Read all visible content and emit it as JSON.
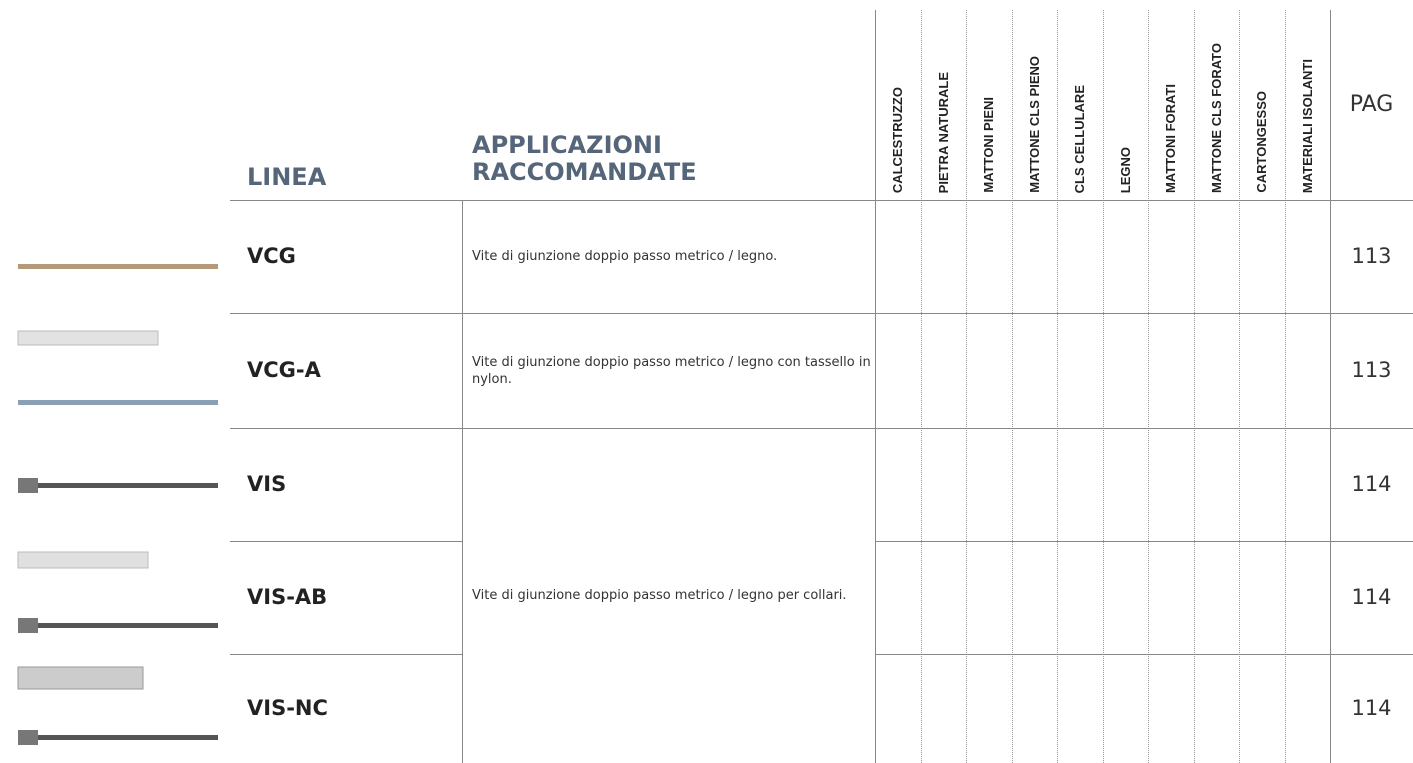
{
  "header": {
    "linea": "LINEA",
    "applicazioni": "APPLICAZIONI RACCOMANDATE",
    "materials": [
      "CALCESTRUZZO",
      "PIETRA NATURALE",
      "MATTONI PIENI",
      "MATTONE CLS PIENO",
      "CLS CELLULARE",
      "LEGNO",
      "MATTONI FORATI",
      "MATTONE CLS FORATO",
      "CARTONGESSO",
      "MATERIALI ISOLANTI"
    ],
    "pag": "PAG"
  },
  "rows": [
    {
      "linea": "VCG",
      "pag": "113"
    },
    {
      "linea": "VCG-A",
      "pag": "113"
    },
    {
      "linea": "VIS",
      "pag": "114"
    },
    {
      "linea": "VIS-AB",
      "pag": "114"
    },
    {
      "linea": "VIS-NC",
      "pag": "114"
    }
  ],
  "applications": [
    "Vite di giunzione doppio passo metrico / legno.",
    "Vite di giunzione doppio passo metrico / legno con tassello in nylon.",
    "Vite di giunzione doppio passo metrico / legno per collari."
  ]
}
